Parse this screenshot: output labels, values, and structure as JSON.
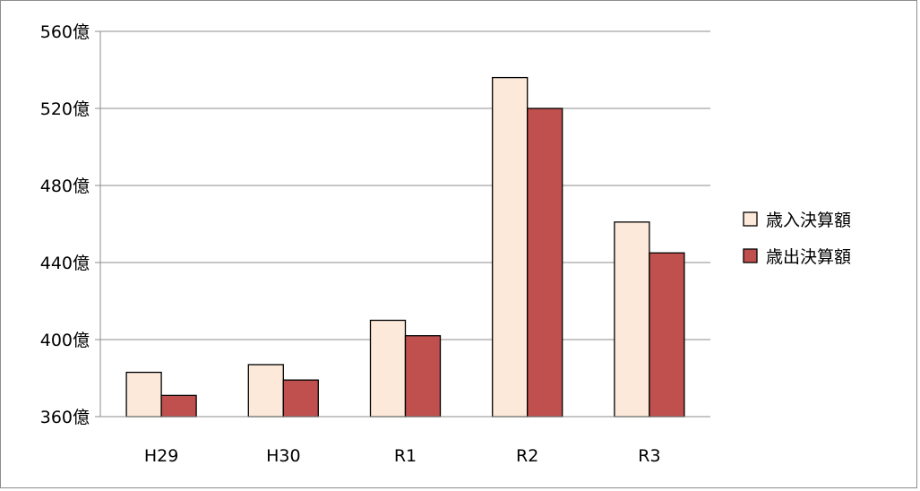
{
  "chart_data": {
    "type": "bar",
    "title": "",
    "xlabel": "",
    "ylabel": "",
    "categories": [
      "H29",
      "H30",
      "R1",
      "R2",
      "R3"
    ],
    "series": [
      {
        "name": "歳入決算額",
        "values": [
          383,
          387,
          410,
          536,
          461
        ],
        "color": "#FDE9D9",
        "stroke": "#000000"
      },
      {
        "name": "歳出決算額",
        "values": [
          371,
          379,
          402,
          520,
          445
        ],
        "color": "#C0504D",
        "stroke": "#000000"
      }
    ],
    "ylim": [
      360,
      560
    ],
    "yticks": [
      360,
      400,
      440,
      480,
      520,
      560
    ],
    "ytick_labels": [
      "360億",
      "400億",
      "440億",
      "480億",
      "520億",
      "560億"
    ],
    "grid": true,
    "legend_position": "right"
  }
}
